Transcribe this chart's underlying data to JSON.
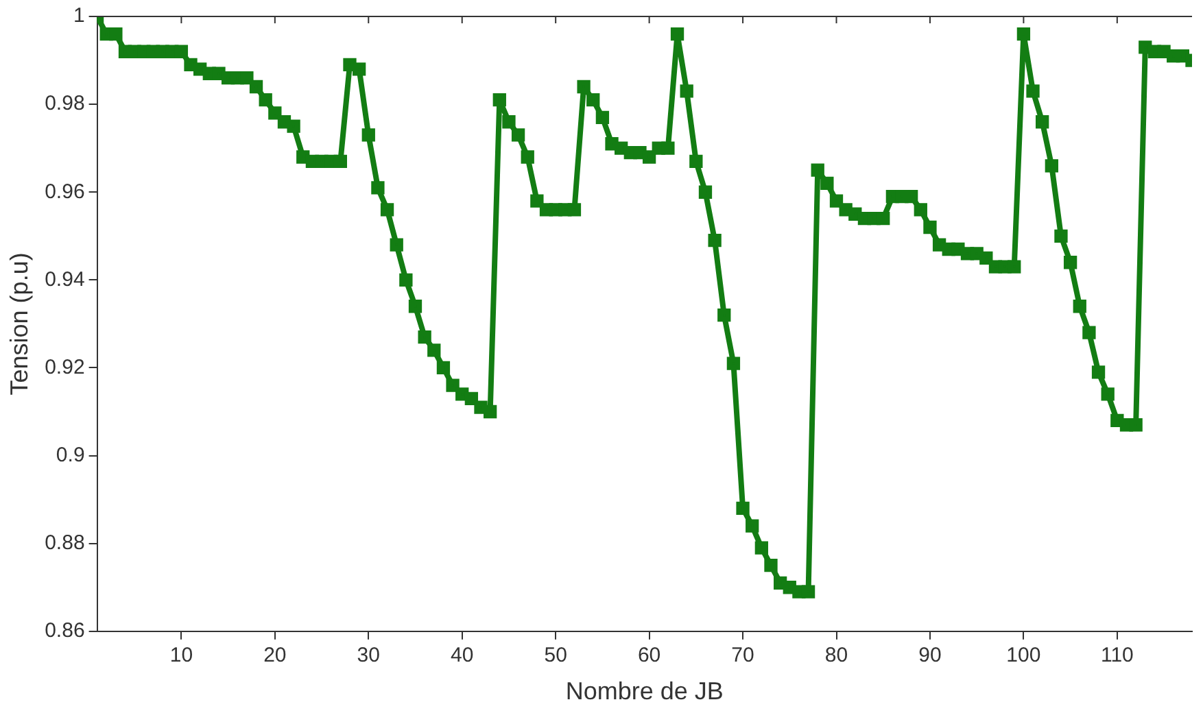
{
  "chart_data": {
    "type": "line",
    "xlabel": "Nombre de JB",
    "ylabel": "Tension (p.u)",
    "x": [
      1,
      2,
      3,
      4,
      5,
      6,
      7,
      8,
      9,
      10,
      11,
      12,
      13,
      14,
      15,
      16,
      17,
      18,
      19,
      20,
      21,
      22,
      23,
      24,
      25,
      26,
      27,
      28,
      29,
      30,
      31,
      32,
      33,
      34,
      35,
      36,
      37,
      38,
      39,
      40,
      41,
      42,
      43,
      44,
      45,
      46,
      47,
      48,
      49,
      50,
      51,
      52,
      53,
      54,
      55,
      56,
      57,
      58,
      59,
      60,
      61,
      62,
      63,
      64,
      65,
      66,
      67,
      68,
      69,
      70,
      71,
      72,
      73,
      74,
      75,
      76,
      77,
      78,
      79,
      80,
      81,
      82,
      83,
      84,
      85,
      86,
      87,
      88,
      89,
      90,
      91,
      92,
      93,
      94,
      95,
      96,
      97,
      98,
      99,
      100,
      101,
      102,
      103,
      104,
      105,
      106,
      107,
      108,
      109,
      110,
      111,
      112,
      113,
      114,
      115,
      116,
      117,
      118
    ],
    "series": [
      {
        "color": "#137d13",
        "values": [
          1.0,
          0.996,
          0.996,
          0.992,
          0.992,
          0.992,
          0.992,
          0.992,
          0.992,
          0.992,
          0.989,
          0.988,
          0.987,
          0.987,
          0.986,
          0.986,
          0.986,
          0.984,
          0.981,
          0.978,
          0.976,
          0.975,
          0.968,
          0.967,
          0.967,
          0.967,
          0.967,
          0.989,
          0.988,
          0.973,
          0.961,
          0.956,
          0.948,
          0.94,
          0.934,
          0.927,
          0.924,
          0.92,
          0.916,
          0.914,
          0.913,
          0.911,
          0.91,
          0.981,
          0.976,
          0.973,
          0.968,
          0.958,
          0.956,
          0.956,
          0.956,
          0.956,
          0.984,
          0.981,
          0.977,
          0.971,
          0.97,
          0.969,
          0.969,
          0.968,
          0.97,
          0.97,
          0.996,
          0.983,
          0.967,
          0.96,
          0.949,
          0.932,
          0.921,
          0.888,
          0.884,
          0.879,
          0.875,
          0.871,
          0.87,
          0.869,
          0.869,
          0.965,
          0.962,
          0.958,
          0.956,
          0.955,
          0.954,
          0.954,
          0.954,
          0.959,
          0.959,
          0.959,
          0.956,
          0.952,
          0.948,
          0.947,
          0.947,
          0.946,
          0.946,
          0.945,
          0.943,
          0.943,
          0.943,
          0.996,
          0.983,
          0.976,
          0.966,
          0.95,
          0.944,
          0.934,
          0.928,
          0.919,
          0.914,
          0.908,
          0.907,
          0.907,
          0.993,
          0.992,
          0.992,
          0.991,
          0.991,
          0.99
        ]
      }
    ],
    "xlim": [
      1,
      118
    ],
    "xticks": [
      10,
      20,
      30,
      40,
      50,
      60,
      70,
      80,
      90,
      100,
      110
    ],
    "ylim": [
      0.86,
      1
    ],
    "yticks": [
      0.86,
      0.88,
      0.9,
      0.92,
      0.94,
      0.96,
      0.98,
      1
    ],
    "marker": "square",
    "line_style": "solid",
    "legend": false,
    "grid": false
  }
}
